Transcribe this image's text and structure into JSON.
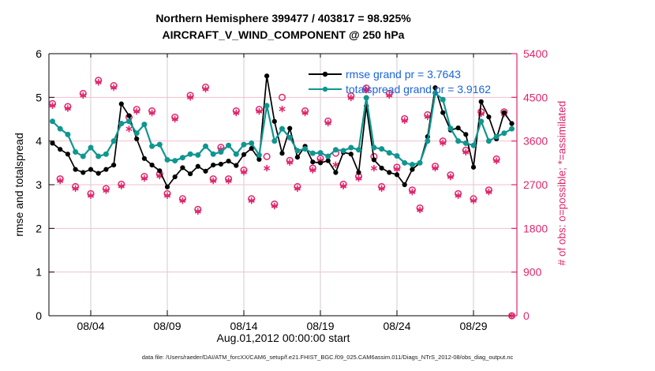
{
  "title": {
    "line1": "Northern Hemisphere 399477 / 403817 = 98.925%",
    "line2": "AIRCRAFT_V_WIND_COMPONENT @ 250 hPa"
  },
  "axes": {
    "left_label": "rmse and totalspread",
    "right_label": "# of obs: o=possible; *=assimilated",
    "x_label": "Aug.01,2012 00:00:00 start"
  },
  "footer": {
    "text": "data file: /Users/raeder/DAI/ATM_forcXX/CAM6_setup/f.e21.FHIST_BGC.f09_025.CAM6assim.011/Diags_NTrS_2012-08/obs_diag_output.nc"
  },
  "colors": {
    "rmse_black": "#000000",
    "totalspread_teal": "#109690",
    "obs_pink": "#e0256b",
    "legend_text_blue": "#1b63d8",
    "grid_horizontal": "#f3bfce",
    "grid_vertical": "#d5c9d2"
  },
  "chart_data": {
    "type": "line",
    "title": "Northern Hemisphere 399477 / 403817 = 98.925%",
    "subtitle": "AIRCRAFT_V_WIND_COMPONENT @ 250 hPa",
    "xlabel": "Aug.01,2012 00:00:00 start",
    "ylabel_left": "rmse and totalspread",
    "ylabel_right": "# of obs: o=possible; *=assimilated",
    "grid": true,
    "legend_position": "top-right-inside",
    "x_unit": "day of August 2012, 12-hourly bins",
    "x": [
      1.5,
      2,
      2.5,
      3,
      3.5,
      4,
      4.5,
      5,
      5.5,
      6,
      6.5,
      7,
      7.5,
      8,
      8.5,
      9,
      9.5,
      10,
      10.5,
      11,
      11.5,
      12,
      12.5,
      13,
      13.5,
      14,
      14.5,
      15,
      15.5,
      16,
      16.5,
      17,
      17.5,
      18,
      18.5,
      19,
      19.5,
      20,
      20.5,
      21,
      21.5,
      22,
      22.5,
      23,
      23.5,
      24,
      24.5,
      25,
      25.5,
      26,
      26.5,
      27,
      27.5,
      28,
      28.5,
      29,
      29.5,
      30,
      30.5,
      31,
      31.5
    ],
    "x_tick_days": [
      4,
      9,
      14,
      19,
      24,
      29
    ],
    "x_tick_labels": [
      "08/04",
      "08/09",
      "08/14",
      "08/19",
      "08/24",
      "08/29"
    ],
    "ylim_left": [
      0,
      6
    ],
    "yticks_left": [
      0,
      1,
      2,
      3,
      4,
      5,
      6
    ],
    "ylim_right": [
      0,
      5400
    ],
    "yticks_right": [
      0,
      900,
      1800,
      2700,
      3600,
      4500,
      5400
    ],
    "series": [
      {
        "name": "rmse grand pr = 3.7643",
        "axis": "left",
        "color": "#000000",
        "marker": "filled-circle",
        "values": [
          3.95,
          3.81,
          3.7,
          3.35,
          3.28,
          3.35,
          3.26,
          3.35,
          3.45,
          4.85,
          4.58,
          4.05,
          3.6,
          3.45,
          3.32,
          2.95,
          3.18,
          3.39,
          3.25,
          3.42,
          3.31,
          3.45,
          3.47,
          3.54,
          3.44,
          3.69,
          3.83,
          3.58,
          5.49,
          4.45,
          3.72,
          4.29,
          3.63,
          3.88,
          3.52,
          3.5,
          3.55,
          3.28,
          3.74,
          3.7,
          3.28,
          4.8,
          3.57,
          3.38,
          3.28,
          3.23,
          3.0,
          3.35,
          3.5,
          4.1,
          5.22,
          4.65,
          4.25,
          4.3,
          4.15,
          3.4,
          4.9,
          4.55,
          4.05,
          4.65,
          4.4
        ]
      },
      {
        "name": "totalspread grand pr = 3.9162",
        "axis": "left",
        "color": "#109690",
        "marker": "filled-circle",
        "values": [
          4.45,
          4.28,
          4.15,
          3.75,
          3.65,
          3.85,
          3.65,
          3.7,
          4.0,
          4.4,
          4.45,
          4.18,
          4.38,
          3.88,
          3.92,
          3.57,
          3.55,
          3.62,
          3.7,
          3.68,
          3.88,
          3.7,
          3.75,
          3.9,
          3.7,
          3.92,
          3.95,
          3.68,
          4.81,
          4.0,
          4.28,
          4.08,
          3.78,
          3.82,
          3.72,
          3.73,
          3.65,
          3.8,
          3.78,
          3.85,
          3.8,
          4.99,
          3.85,
          3.82,
          3.73,
          3.66,
          3.5,
          3.46,
          3.5,
          4.0,
          5.1,
          4.95,
          4.29,
          4.0,
          3.95,
          3.9,
          4.45,
          4.0,
          4.1,
          4.18,
          4.28
        ]
      },
      {
        "name": "# of obs possible (o)",
        "axis": "right",
        "color": "#e0256b",
        "marker": "open-circle",
        "values": [
          4370,
          2820,
          4310,
          2660,
          4580,
          2515,
          4850,
          2620,
          4740,
          2710,
          4090,
          4250,
          2870,
          4220,
          2920,
          2515,
          4090,
          2410,
          4540,
          2190,
          4710,
          2820,
          3470,
          2820,
          4220,
          3000,
          2410,
          4250,
          3280,
          2300,
          4500,
          3200,
          2660,
          4220,
          3040,
          3240,
          4010,
          3350,
          2710,
          4530,
          2870,
          4690,
          3280,
          2660,
          4580,
          3060,
          4060,
          2590,
          2220,
          4140,
          3080,
          3600,
          2900,
          2515,
          3410,
          2410,
          4200,
          2590,
          3230,
          4200,
          0
        ]
      },
      {
        "name": "# of obs assimilated (*)",
        "axis": "right",
        "color": "#e0256b",
        "marker": "asterisk",
        "values": [
          4330,
          2780,
          4270,
          2620,
          4540,
          2475,
          4810,
          2580,
          4700,
          2670,
          3850,
          4210,
          2830,
          4180,
          2880,
          2475,
          4050,
          2370,
          4500,
          2150,
          4670,
          2780,
          3430,
          2780,
          4180,
          2960,
          2370,
          4210,
          3040,
          2260,
          4260,
          3160,
          2620,
          4180,
          3000,
          3200,
          3970,
          3110,
          2670,
          4490,
          2830,
          4650,
          3040,
          2620,
          4540,
          3020,
          4020,
          2550,
          2180,
          4100,
          3040,
          3560,
          2860,
          2475,
          3370,
          2370,
          4160,
          2550,
          3190,
          4160,
          0
        ]
      }
    ]
  }
}
